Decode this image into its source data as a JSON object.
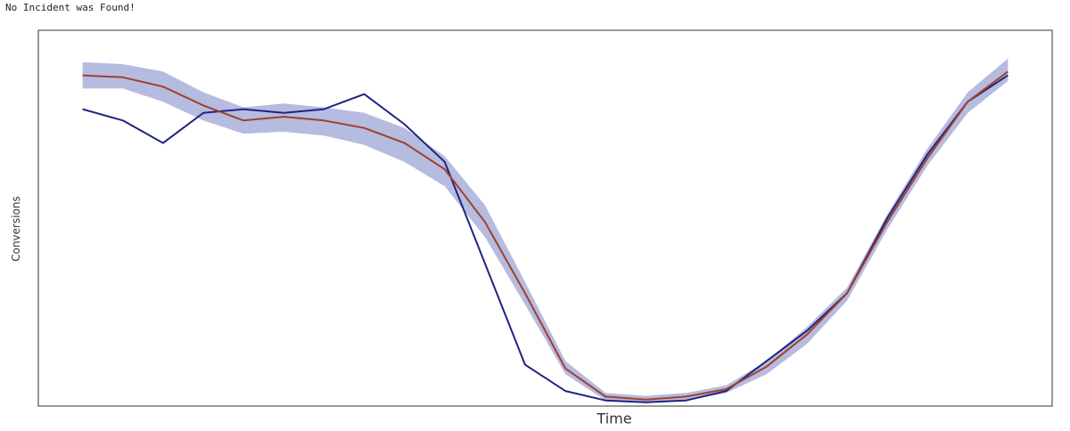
{
  "status_message": "No Incident was Found!",
  "chart_data": {
    "type": "line",
    "title": "",
    "xlabel": "Time",
    "ylabel": "Conversions",
    "grid": false,
    "x": [
      0,
      1,
      2,
      3,
      4,
      5,
      6,
      7,
      8,
      9,
      10,
      11,
      12,
      13,
      14,
      15,
      16,
      17,
      18,
      19,
      20,
      21,
      22,
      23
    ],
    "xlim": [
      -1.1,
      24.1
    ],
    "ylim": [
      0.04,
      1.04
    ],
    "series": [
      {
        "color": "#1f2480",
        "values": [
          0.83,
          0.8,
          0.74,
          0.82,
          0.83,
          0.82,
          0.83,
          0.87,
          0.79,
          0.69,
          0.42,
          0.15,
          0.08,
          0.055,
          0.05,
          0.055,
          0.08,
          0.16,
          0.24,
          0.34,
          0.54,
          0.71,
          0.85,
          0.92
        ]
      },
      {
        "color": "#a0402a",
        "values": [
          0.92,
          0.915,
          0.89,
          0.84,
          0.8,
          0.81,
          0.8,
          0.78,
          0.74,
          0.67,
          0.53,
          0.34,
          0.14,
          0.065,
          0.057,
          0.065,
          0.085,
          0.145,
          0.23,
          0.34,
          0.53,
          0.7,
          0.85,
          0.93
        ]
      }
    ],
    "band": {
      "color": "#8f97d0",
      "lower": [
        0.885,
        0.885,
        0.85,
        0.8,
        0.765,
        0.77,
        0.76,
        0.735,
        0.69,
        0.625,
        0.49,
        0.31,
        0.125,
        0.055,
        0.047,
        0.055,
        0.075,
        0.125,
        0.205,
        0.32,
        0.51,
        0.68,
        0.82,
        0.905
      ],
      "upper": [
        0.955,
        0.95,
        0.93,
        0.875,
        0.835,
        0.845,
        0.835,
        0.82,
        0.78,
        0.705,
        0.575,
        0.37,
        0.16,
        0.075,
        0.067,
        0.075,
        0.095,
        0.16,
        0.25,
        0.355,
        0.55,
        0.725,
        0.875,
        0.965
      ]
    }
  }
}
